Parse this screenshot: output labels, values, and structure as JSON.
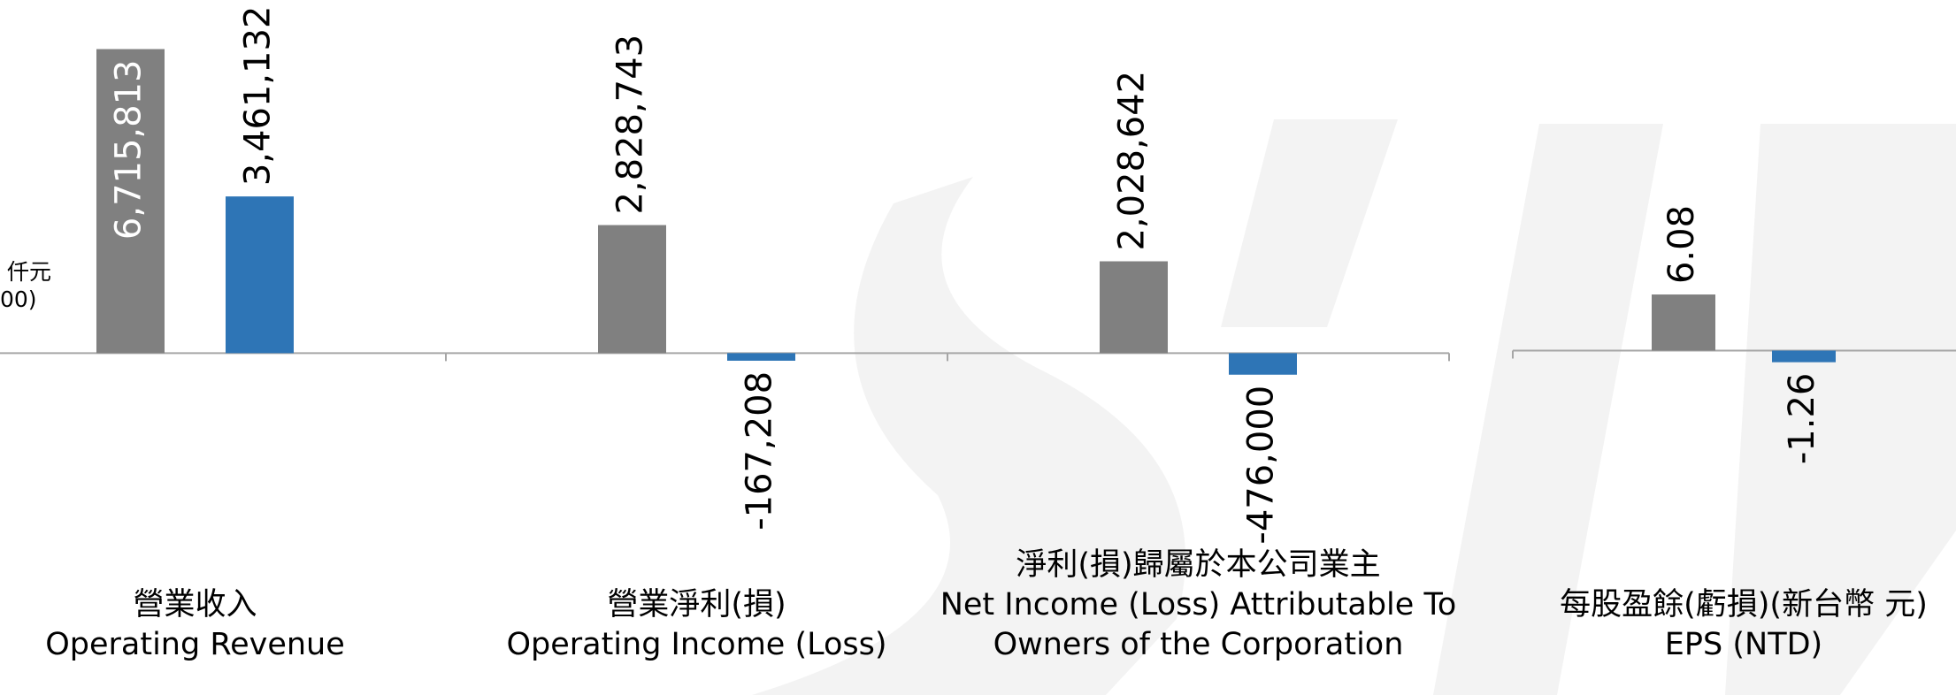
{
  "charts": [
    {
      "type": "bar",
      "unit_label": [
        "仟元",
        "00)"
      ],
      "categories": [
        [
          "營業收入",
          "Operating Revenue"
        ],
        [
          "營業淨利(損)",
          "Operating Income (Loss)"
        ],
        [
          "淨利(損)歸屬於本公司業主",
          "Net Income (Loss) Attributable To",
          "Owners of the Corporation"
        ]
      ],
      "series": [
        {
          "color": "#808080",
          "values": [
            6715813,
            2828743,
            2028642
          ],
          "value_labels": [
            "6,715,813",
            "2,828,743",
            "2,028,642"
          ]
        },
        {
          "color": "#2e75b6",
          "values": [
            3461132,
            -167208,
            -476000
          ],
          "value_labels": [
            "3,461,132",
            "-167,208",
            "-476,000"
          ]
        }
      ],
      "ylim": [
        -3000000,
        7800000
      ]
    },
    {
      "type": "bar",
      "categories": [
        [
          "每股盈餘(虧損)(新台幣 元)",
          "EPS (NTD)"
        ]
      ],
      "series": [
        {
          "color": "#808080",
          "values": [
            6.08
          ]
        },
        {
          "color": "#2e75b6",
          "values": [
            -1.26
          ]
        }
      ],
      "ylim": [
        -15,
        38
      ]
    }
  ]
}
